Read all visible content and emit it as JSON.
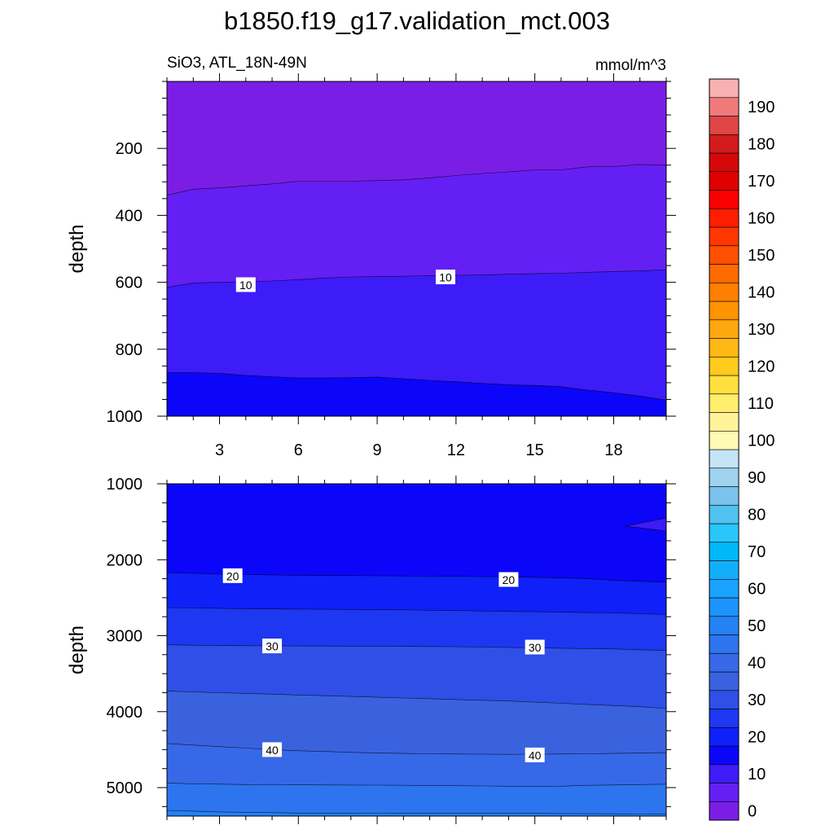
{
  "chart_data": {
    "type": "contour",
    "title": "b1850.f19_g17.validation_mct.003",
    "units": "mmol/m^3",
    "colorbar": {
      "tick_labels": [
        "0",
        "10",
        "20",
        "30",
        "40",
        "50",
        "60",
        "70",
        "80",
        "90",
        "100",
        "110",
        "120",
        "130",
        "140",
        "150",
        "160",
        "170",
        "180",
        "190"
      ],
      "levels": [
        0,
        5,
        10,
        15,
        20,
        25,
        30,
        35,
        40,
        45,
        50,
        55,
        60,
        65,
        70,
        75,
        80,
        85,
        90,
        95,
        100,
        105,
        110,
        115,
        120,
        125,
        130,
        135,
        140,
        145,
        150,
        155,
        160,
        165,
        170,
        175,
        180,
        185,
        190,
        195
      ],
      "colors": [
        "#7a1ee6",
        "#641ff5",
        "#3d1cf8",
        "#0b06f9",
        "#0f21f8",
        "#1e37f0",
        "#2f4fe6",
        "#3a62de",
        "#3768e8",
        "#2c75ef",
        "#2482f5",
        "#1c94fb",
        "#1aa3fe",
        "#13aefb",
        "#00b8f8",
        "#28c6fb",
        "#51c2f1",
        "#79c3ec",
        "#9ed2ef",
        "#c5e4f5",
        "#fff9b4",
        "#fff39a",
        "#ffee6e",
        "#ffe03e",
        "#ffca1b",
        "#ffb813",
        "#ffa70e",
        "#ff9300",
        "#ff7f00",
        "#ff6a00",
        "#ff4f00",
        "#ff3700",
        "#ff1d00",
        "#fa0000",
        "#e00000",
        "#d40808",
        "#d21b1b",
        "#df4646",
        "#f07a7a",
        "#f9b0b0"
      ]
    },
    "panels": [
      {
        "subtitle_left": "SiO3, ATL_18N-49N",
        "subtitle_right": "mmol/m^3",
        "ylabel": "depth",
        "ylim": [
          0,
          1000
        ],
        "y_inverted": true,
        "yticks": [
          200,
          400,
          600,
          800,
          1000
        ],
        "xlim": [
          1,
          20
        ],
        "xticks": [
          3,
          6,
          9,
          12,
          15,
          18
        ],
        "x": [
          1,
          2,
          3,
          4,
          5,
          6,
          7,
          8,
          9,
          10,
          11,
          12,
          13,
          14,
          15,
          16,
          17,
          18,
          19,
          20
        ],
        "contours": [
          {
            "level": 5,
            "depths": [
              340,
              322,
              318,
              312,
              306,
              298,
              298,
              298,
              296,
              294,
              288,
              281,
              275,
              270,
              264,
              264,
              255,
              254,
              248,
              250
            ]
          },
          {
            "level": 10,
            "depths": [
              615,
              602,
              600,
              598,
              596,
              592,
              587,
              584,
              583,
              582,
              580,
              579,
              578,
              576,
              574,
              573,
              570,
              568,
              566,
              562
            ]
          },
          {
            "level": 15,
            "depths": [
              870,
              870,
              872,
              878,
              882,
              886,
              886,
              885,
              883,
              888,
              893,
              897,
              902,
              906,
              908,
              912,
              922,
              930,
              940,
              952
            ]
          }
        ],
        "labels": [
          {
            "text": "10",
            "x": 4.0,
            "depth": 607
          },
          {
            "text": "10",
            "x": 11.6,
            "depth": 584
          }
        ]
      },
      {
        "ylabel": "depth",
        "ylim": [
          1000,
          5375
        ],
        "y_inverted": true,
        "yticks": [
          1000,
          2000,
          3000,
          4000,
          5000
        ],
        "xlim": [
          1,
          20
        ],
        "xticks": [
          3,
          6,
          9,
          12,
          15,
          18
        ],
        "x": [
          1,
          2,
          3,
          4,
          5,
          6,
          7,
          8,
          9,
          10,
          11,
          12,
          13,
          14,
          15,
          16,
          17,
          18,
          19,
          20
        ],
        "contours": [
          {
            "level": 20,
            "depths": [
              2170,
              2180,
              2190,
              2195,
              2200,
              2205,
              2208,
              2210,
              2212,
              2214,
              2215,
              2218,
              2222,
              2225,
              2232,
              2240,
              2250,
              2270,
              2285,
              2295
            ]
          },
          {
            "level": 25,
            "depths": [
              2630,
              2635,
              2640,
              2645,
              2648,
              2650,
              2652,
              2655,
              2658,
              2660,
              2665,
              2670,
              2675,
              2680,
              2685,
              2690,
              2695,
              2700,
              2710,
              2720
            ]
          },
          {
            "level": 30,
            "depths": [
              3120,
              3125,
              3130,
              3132,
              3134,
              3135,
              3136,
              3137,
              3138,
              3140,
              3142,
              3145,
              3150,
              3155,
              3160,
              3165,
              3170,
              3175,
              3185,
              3195
            ]
          },
          {
            "level": 35,
            "depths": [
              3730,
              3740,
              3750,
              3760,
              3770,
              3780,
              3790,
              3800,
              3810,
              3820,
              3830,
              3840,
              3850,
              3860,
              3875,
              3890,
              3905,
              3920,
              3935,
              3960
            ]
          },
          {
            "level": 40,
            "depths": [
              4420,
              4440,
              4460,
              4480,
              4500,
              4515,
              4525,
              4535,
              4545,
              4550,
              4555,
              4558,
              4560,
              4562,
              4560,
              4558,
              4555,
              4550,
              4545,
              4540
            ]
          },
          {
            "level": 45,
            "depths": [
              4940,
              4950,
              4955,
              4960,
              4962,
              4963,
              4965,
              4966,
              4968,
              4970,
              4972,
              4975,
              4978,
              4982,
              4985,
              4982,
              4970,
              4965,
              4960,
              4955
            ]
          },
          {
            "level": 50,
            "depths": [
              5300,
              5310,
              5320,
              5325,
              5330,
              5335,
              5335,
              5335,
              5338,
              5340,
              5340,
              5340,
              5340,
              5340,
              5340,
              5342,
              5344,
              5345,
              5348,
              5350
            ]
          }
        ],
        "labels": [
          {
            "text": "20",
            "x": 3.5,
            "depth": 2210
          },
          {
            "text": "20",
            "x": 14.0,
            "depth": 2260
          },
          {
            "text": "30",
            "x": 5.0,
            "depth": 3135
          },
          {
            "text": "30",
            "x": 15.0,
            "depth": 3150
          },
          {
            "text": "40",
            "x": 5.0,
            "depth": 4500
          },
          {
            "text": "40",
            "x": 15.0,
            "depth": 4570
          }
        ]
      }
    ]
  }
}
